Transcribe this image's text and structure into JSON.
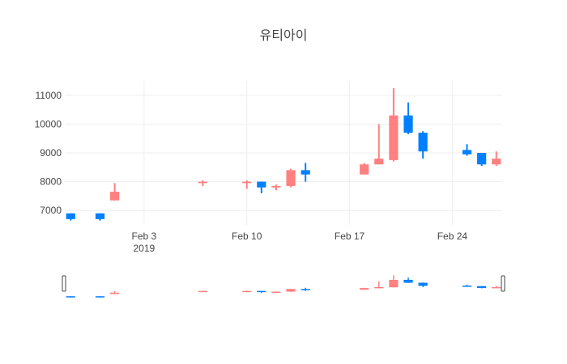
{
  "chart_data": {
    "type": "candlestick",
    "title": "유티아이",
    "xlabel": "",
    "ylabel": "",
    "ylim": [
      6500,
      11500
    ],
    "yticks": [
      "7000",
      "8000",
      "9000",
      "10000",
      "11000"
    ],
    "xticks": [
      {
        "date": "2019-02-03",
        "label": "Feb 3",
        "sublabel": "2019"
      },
      {
        "date": "2019-02-10",
        "label": "Feb 10",
        "sublabel": ""
      },
      {
        "date": "2019-02-17",
        "label": "Feb 17",
        "sublabel": ""
      },
      {
        "date": "2019-02-24",
        "label": "Feb 24",
        "sublabel": ""
      }
    ],
    "x_range": [
      "2019-01-29",
      "2019-02-27"
    ],
    "grid": true,
    "range_slider": true,
    "colors": {
      "increasing": "#FF8080",
      "decreasing": "#0080FF"
    },
    "candles": [
      {
        "date": "2019-01-29",
        "open": 6900,
        "high": 6900,
        "low": 6650,
        "close": 6700
      },
      {
        "date": "2019-01-31",
        "open": 6900,
        "high": 6900,
        "low": 6650,
        "close": 6700
      },
      {
        "date": "2019-02-01",
        "open": 7350,
        "high": 7950,
        "low": 7350,
        "close": 7650
      },
      {
        "date": "2019-02-07",
        "open": 7950,
        "high": 8050,
        "low": 7850,
        "close": 8000
      },
      {
        "date": "2019-02-10",
        "open": 7950,
        "high": 8050,
        "low": 7750,
        "close": 8000
      },
      {
        "date": "2019-02-11",
        "open": 8000,
        "high": 8000,
        "low": 7600,
        "close": 7800
      },
      {
        "date": "2019-02-12",
        "open": 7800,
        "high": 7900,
        "low": 7700,
        "close": 7850
      },
      {
        "date": "2019-02-13",
        "open": 7850,
        "high": 8450,
        "low": 7800,
        "close": 8400
      },
      {
        "date": "2019-02-14",
        "open": 8400,
        "high": 8650,
        "low": 8000,
        "close": 8250
      },
      {
        "date": "2019-02-18",
        "open": 8250,
        "high": 8650,
        "low": 8250,
        "close": 8600
      },
      {
        "date": "2019-02-19",
        "open": 8600,
        "high": 10000,
        "low": 8600,
        "close": 8800
      },
      {
        "date": "2019-02-20",
        "open": 8750,
        "high": 11250,
        "low": 8700,
        "close": 10300
      },
      {
        "date": "2019-02-21",
        "open": 10300,
        "high": 10750,
        "low": 9650,
        "close": 9700
      },
      {
        "date": "2019-02-22",
        "open": 9700,
        "high": 9750,
        "low": 8800,
        "close": 9050
      },
      {
        "date": "2019-02-25",
        "open": 9100,
        "high": 9300,
        "low": 8900,
        "close": 8950
      },
      {
        "date": "2019-02-26",
        "open": 9000,
        "high": 9000,
        "low": 8550,
        "close": 8600
      },
      {
        "date": "2019-02-27",
        "open": 8600,
        "high": 9050,
        "low": 8550,
        "close": 8800
      }
    ]
  }
}
